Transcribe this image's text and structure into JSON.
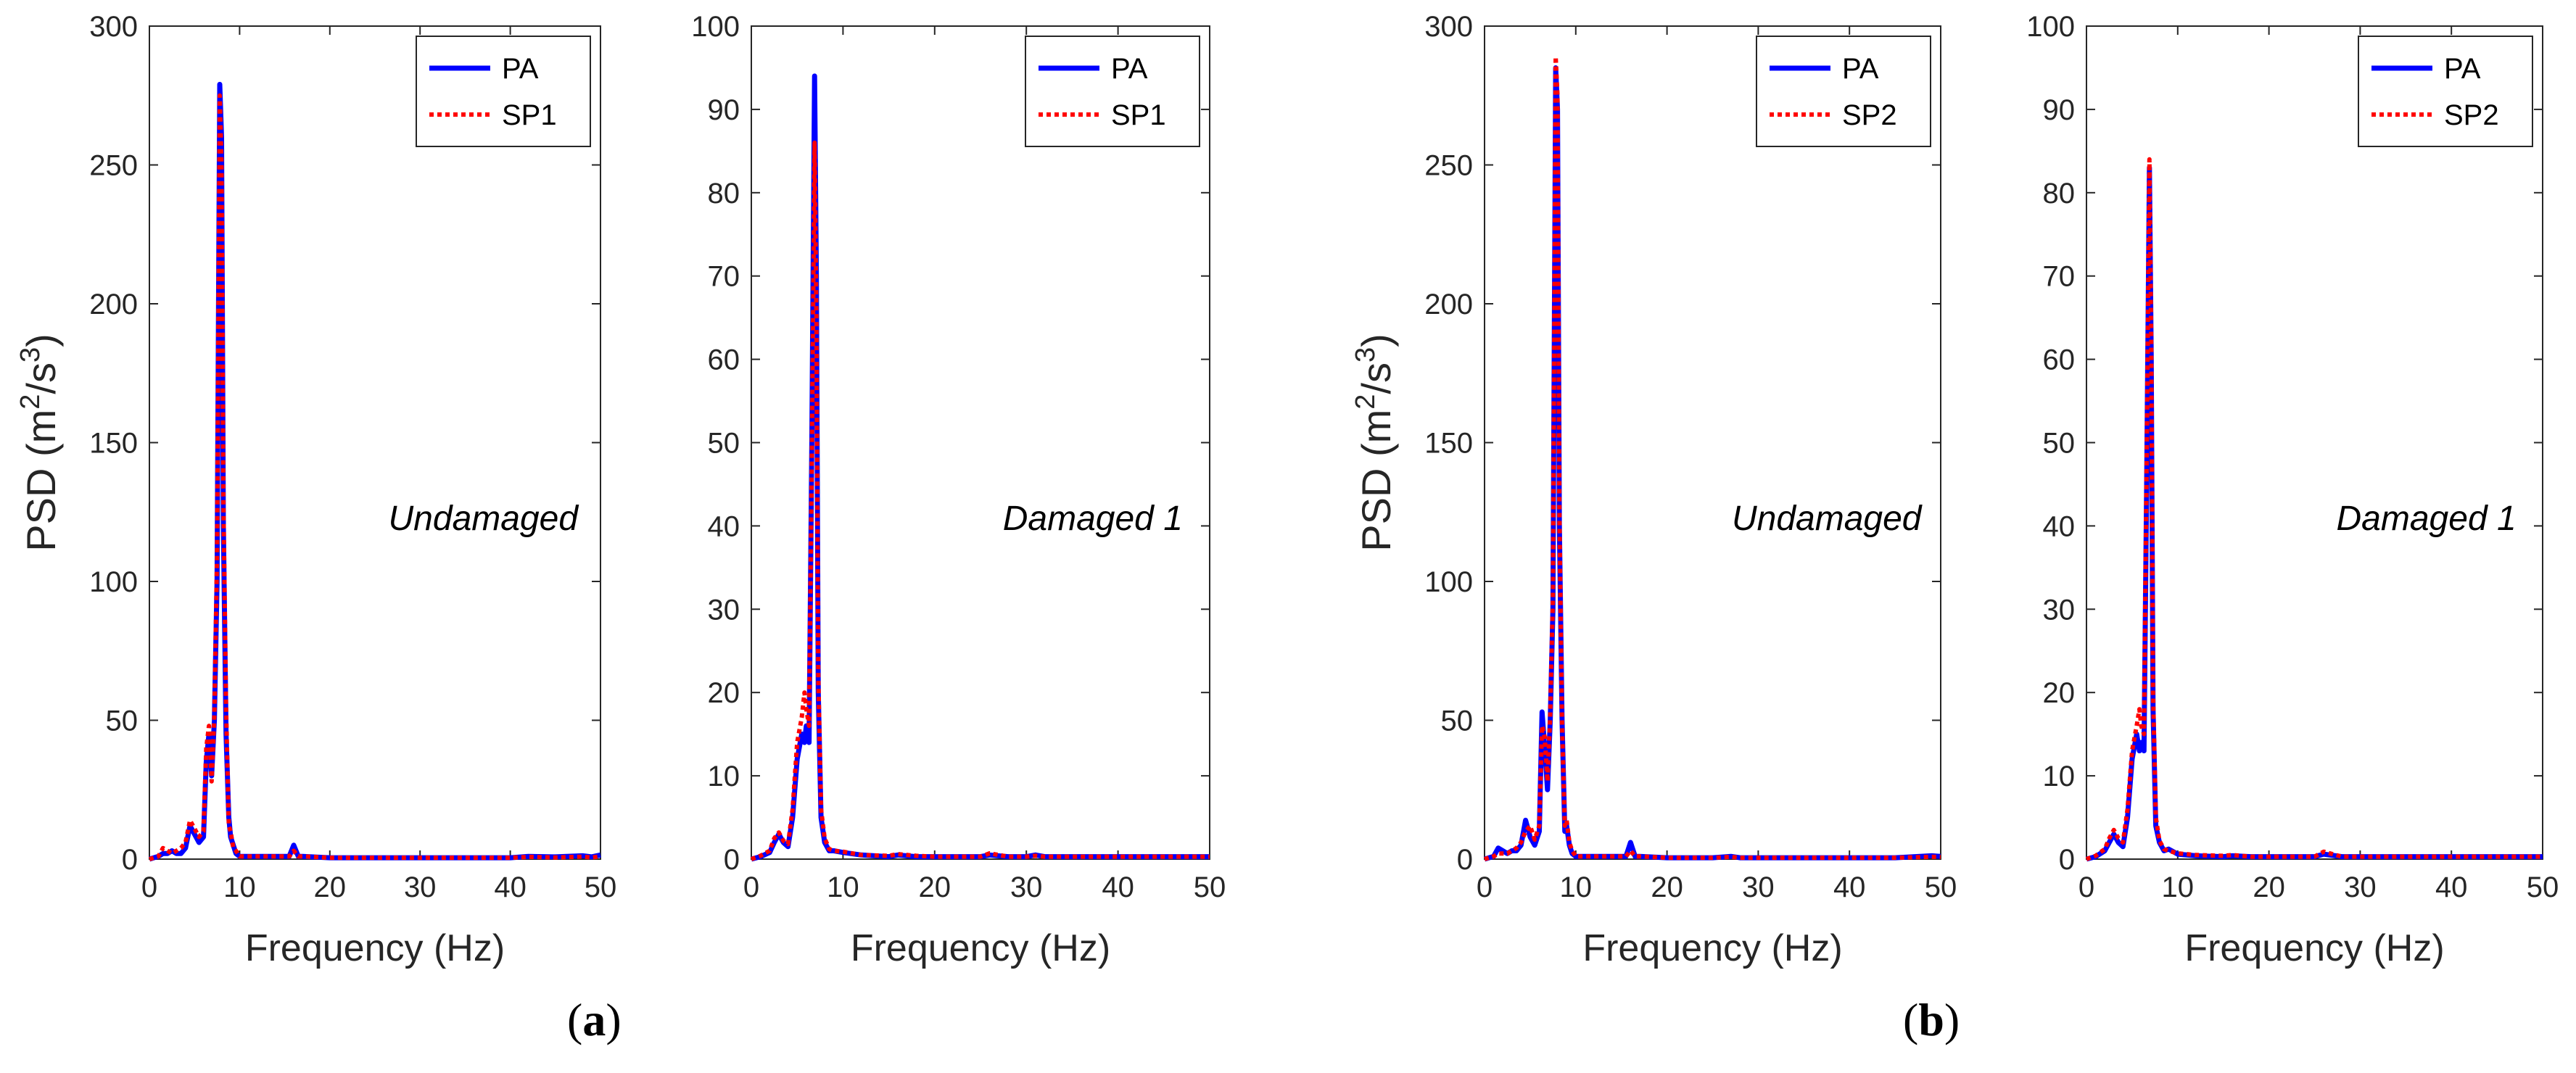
{
  "figure": {
    "panel_labels": [
      {
        "open": "(",
        "letter": "a",
        "close": ")"
      },
      {
        "open": "(",
        "letter": "b",
        "close": ")"
      }
    ]
  },
  "chart_data": [
    {
      "type": "line",
      "panel": "a",
      "annotation": "Undamaged",
      "xlabel": "Frequency (Hz)",
      "ylabel": "PSD (m2/s3)",
      "xlim": [
        0,
        50
      ],
      "ylim": [
        0,
        300
      ],
      "xticks": [
        0,
        10,
        20,
        30,
        40,
        50
      ],
      "yticks": [
        0,
        50,
        100,
        150,
        200,
        250,
        300
      ],
      "legend": "top-right",
      "series": [
        {
          "name": "PA",
          "color": "#0000ff",
          "style": "solid",
          "x": [
            0,
            1,
            1.5,
            2,
            2.5,
            3,
            3.5,
            4,
            4.5,
            5,
            5.5,
            6,
            6.3,
            6.6,
            6.9,
            7.2,
            7.5,
            7.8,
            8,
            8.2,
            8.5,
            8.8,
            9,
            9.3,
            9.6,
            10,
            11,
            12,
            13,
            14,
            15,
            15.5,
            16,
            16.5,
            17,
            20,
            25,
            30,
            35,
            40,
            42,
            45,
            48,
            49,
            50
          ],
          "y": [
            0,
            1,
            2,
            2,
            3,
            2,
            2,
            4,
            12,
            9,
            6,
            8,
            35,
            45,
            30,
            50,
            100,
            279,
            260,
            120,
            45,
            15,
            8,
            5,
            2,
            1,
            1,
            1,
            1,
            1,
            1,
            1,
            5,
            1,
            1,
            0.5,
            0.5,
            0.5,
            0.5,
            0.5,
            1,
            0.8,
            1.2,
            0.8,
            1.5
          ]
        },
        {
          "name": "SP1",
          "color": "#ff0000",
          "style": "dotted",
          "x": [
            0,
            1,
            1.5,
            2,
            2.5,
            3,
            3.5,
            4,
            4.5,
            5,
            5.5,
            6,
            6.3,
            6.6,
            6.9,
            7.2,
            7.5,
            7.8,
            8,
            8.2,
            8.5,
            8.8,
            9,
            9.3,
            9.6,
            10,
            11,
            12,
            13,
            14,
            15,
            15.5,
            16,
            16.5,
            17,
            20,
            25,
            30,
            35,
            40,
            42,
            45,
            48,
            49,
            50
          ],
          "y": [
            0,
            1,
            4,
            3,
            2,
            3,
            4,
            6,
            14,
            11,
            8,
            10,
            40,
            48,
            28,
            52,
            110,
            275,
            250,
            130,
            55,
            12,
            10,
            4,
            3,
            1,
            1,
            1,
            1,
            1,
            1,
            1,
            3,
            1,
            1,
            0.5,
            0.5,
            0.5,
            0.5,
            0.5,
            0.8,
            0.6,
            0.9,
            0.6,
            1
          ]
        }
      ],
      "legend_entries": [
        "PA",
        "SP1"
      ]
    },
    {
      "type": "line",
      "panel": "a",
      "annotation": "Damaged 1",
      "xlabel": "Frequency (Hz)",
      "ylabel": "",
      "xlim": [
        0,
        50
      ],
      "ylim": [
        0,
        100
      ],
      "xticks": [
        0,
        10,
        20,
        30,
        40,
        50
      ],
      "yticks": [
        0,
        10,
        20,
        30,
        40,
        50,
        60,
        70,
        80,
        90,
        100
      ],
      "legend": "top-right",
      "series": [
        {
          "name": "PA",
          "color": "#0000ff",
          "style": "solid",
          "x": [
            0,
            1,
            2,
            2.5,
            3,
            3.5,
            4,
            4.5,
            5,
            5.5,
            5.8,
            6,
            6.3,
            6.6,
            6.9,
            7.1,
            7.3,
            7.6,
            8,
            8.5,
            9,
            10,
            12,
            15,
            16,
            18,
            20,
            25,
            26,
            28,
            30,
            31,
            32,
            35,
            40,
            45,
            50
          ],
          "y": [
            0,
            0.3,
            0.8,
            2,
            3,
            2,
            1.5,
            5,
            12,
            15,
            14,
            16,
            14,
            50,
            94,
            70,
            20,
            5,
            2,
            1,
            1,
            0.8,
            0.5,
            0.3,
            0.5,
            0.3,
            0.3,
            0.3,
            0.5,
            0.3,
            0.3,
            0.5,
            0.3,
            0.3,
            0.3,
            0.3,
            0.3
          ]
        },
        {
          "name": "SP1",
          "color": "#ff0000",
          "style": "dotted",
          "x": [
            0,
            1,
            2,
            2.5,
            3,
            3.5,
            4,
            4.5,
            5,
            5.5,
            5.8,
            6,
            6.3,
            6.6,
            6.9,
            7.1,
            7.3,
            7.6,
            8,
            8.5,
            9,
            10,
            12,
            15,
            16,
            18,
            20,
            25,
            26,
            28,
            30,
            31,
            32,
            35,
            40,
            45,
            50
          ],
          "y": [
            0,
            0.4,
            1,
            2.5,
            3.2,
            2.2,
            1.8,
            6,
            14,
            17,
            20,
            18,
            16,
            48,
            86,
            65,
            22,
            6,
            2.5,
            1.2,
            1,
            0.9,
            0.5,
            0.4,
            0.6,
            0.4,
            0.3,
            0.3,
            0.7,
            0.3,
            0.3,
            0.4,
            0.3,
            0.3,
            0.3,
            0.3,
            0.3
          ]
        }
      ],
      "legend_entries": [
        "PA",
        "SP1"
      ]
    },
    {
      "type": "line",
      "panel": "b",
      "annotation": "Undamaged",
      "xlabel": "Frequency (Hz)",
      "ylabel": "PSD (m2/s3)",
      "xlim": [
        0,
        50
      ],
      "ylim": [
        0,
        300
      ],
      "xticks": [
        0,
        10,
        20,
        30,
        40,
        50
      ],
      "yticks": [
        0,
        50,
        100,
        150,
        200,
        250,
        300
      ],
      "legend": "top-right",
      "series": [
        {
          "name": "PA",
          "color": "#0000ff",
          "style": "solid",
          "x": [
            0,
            1,
            1.5,
            2,
            2.5,
            3,
            3.5,
            4,
            4.5,
            5,
            5.5,
            6,
            6.3,
            6.6,
            6.9,
            7.2,
            7.5,
            7.8,
            8,
            8.2,
            8.5,
            8.8,
            9,
            9.3,
            9.6,
            10,
            11,
            12,
            13,
            14,
            15,
            15.5,
            16,
            16.5,
            17,
            20,
            25,
            27,
            28,
            30,
            35,
            40,
            45,
            49,
            50
          ],
          "y": [
            0,
            1,
            4,
            3,
            2,
            3,
            3,
            5,
            14,
            8,
            5,
            10,
            53,
            40,
            25,
            50,
            90,
            285,
            270,
            120,
            50,
            10,
            12,
            5,
            2,
            1,
            1,
            1,
            1,
            1,
            1,
            1,
            6,
            1,
            1,
            0.5,
            0.5,
            1,
            0.5,
            0.5,
            0.5,
            0.5,
            0.5,
            1.2,
            1
          ]
        },
        {
          "name": "SP2",
          "color": "#ff0000",
          "style": "dotted",
          "x": [
            0,
            1,
            1.5,
            2,
            2.5,
            3,
            3.5,
            4,
            4.5,
            5,
            5.5,
            6,
            6.3,
            6.6,
            6.9,
            7.2,
            7.5,
            7.8,
            8,
            8.2,
            8.5,
            8.8,
            9,
            9.3,
            9.6,
            10,
            11,
            12,
            13,
            14,
            15,
            15.5,
            16,
            16.5,
            17,
            20,
            25,
            27,
            28,
            30,
            35,
            40,
            45,
            49,
            50
          ],
          "y": [
            0,
            1,
            2,
            2,
            2,
            3,
            4,
            6,
            10,
            12,
            7,
            12,
            48,
            44,
            28,
            52,
            95,
            289,
            275,
            125,
            48,
            12,
            14,
            6,
            3,
            1,
            1,
            1,
            1,
            1,
            1,
            1,
            3,
            1,
            1,
            0.5,
            0.5,
            0.8,
            0.5,
            0.5,
            0.5,
            0.5,
            0.5,
            0.8,
            0.8
          ]
        }
      ],
      "legend_entries": [
        "PA",
        "SP2"
      ]
    },
    {
      "type": "line",
      "panel": "b",
      "annotation": "Damaged 1",
      "xlabel": "Frequency (Hz)",
      "ylabel": "",
      "xlim": [
        0,
        50
      ],
      "ylim": [
        0,
        100
      ],
      "xticks": [
        0,
        10,
        20,
        30,
        40,
        50
      ],
      "yticks": [
        0,
        10,
        20,
        30,
        40,
        50,
        60,
        70,
        80,
        90,
        100
      ],
      "legend": "top-right",
      "series": [
        {
          "name": "PA",
          "color": "#0000ff",
          "style": "solid",
          "x": [
            0,
            1,
            2,
            2.5,
            3,
            3.5,
            4,
            4.5,
            5,
            5.5,
            5.8,
            6,
            6.3,
            6.6,
            6.9,
            7.1,
            7.3,
            7.6,
            8,
            8.5,
            9,
            10,
            12,
            15,
            16,
            18,
            20,
            25,
            26,
            28,
            30,
            35,
            40,
            45,
            50
          ],
          "y": [
            0,
            0.3,
            1,
            2,
            3,
            2,
            1.5,
            5,
            12,
            15,
            13,
            14,
            13,
            45,
            83,
            60,
            18,
            4,
            2,
            1,
            1.2,
            0.6,
            0.4,
            0.3,
            0.4,
            0.3,
            0.3,
            0.3,
            0.6,
            0.3,
            0.3,
            0.3,
            0.3,
            0.3,
            0.3
          ]
        },
        {
          "name": "SP2",
          "color": "#ff0000",
          "style": "dotted",
          "x": [
            0,
            1,
            2,
            2.5,
            3,
            3.5,
            4,
            4.5,
            5,
            5.5,
            5.8,
            6,
            6.3,
            6.6,
            6.9,
            7.1,
            7.3,
            7.6,
            8,
            8.5,
            9,
            10,
            12,
            15,
            16,
            18,
            20,
            25,
            26,
            28,
            30,
            35,
            40,
            45,
            50
          ],
          "y": [
            0,
            0.4,
            1.2,
            2.5,
            3.5,
            2.5,
            2,
            6,
            13,
            16,
            18,
            16,
            15,
            48,
            84,
            62,
            20,
            5,
            2.2,
            1.2,
            1,
            0.7,
            0.5,
            0.4,
            0.5,
            0.3,
            0.3,
            0.3,
            0.9,
            0.3,
            0.3,
            0.3,
            0.3,
            0.3,
            0.3
          ]
        }
      ],
      "legend_entries": [
        "PA",
        "SP2"
      ]
    }
  ]
}
